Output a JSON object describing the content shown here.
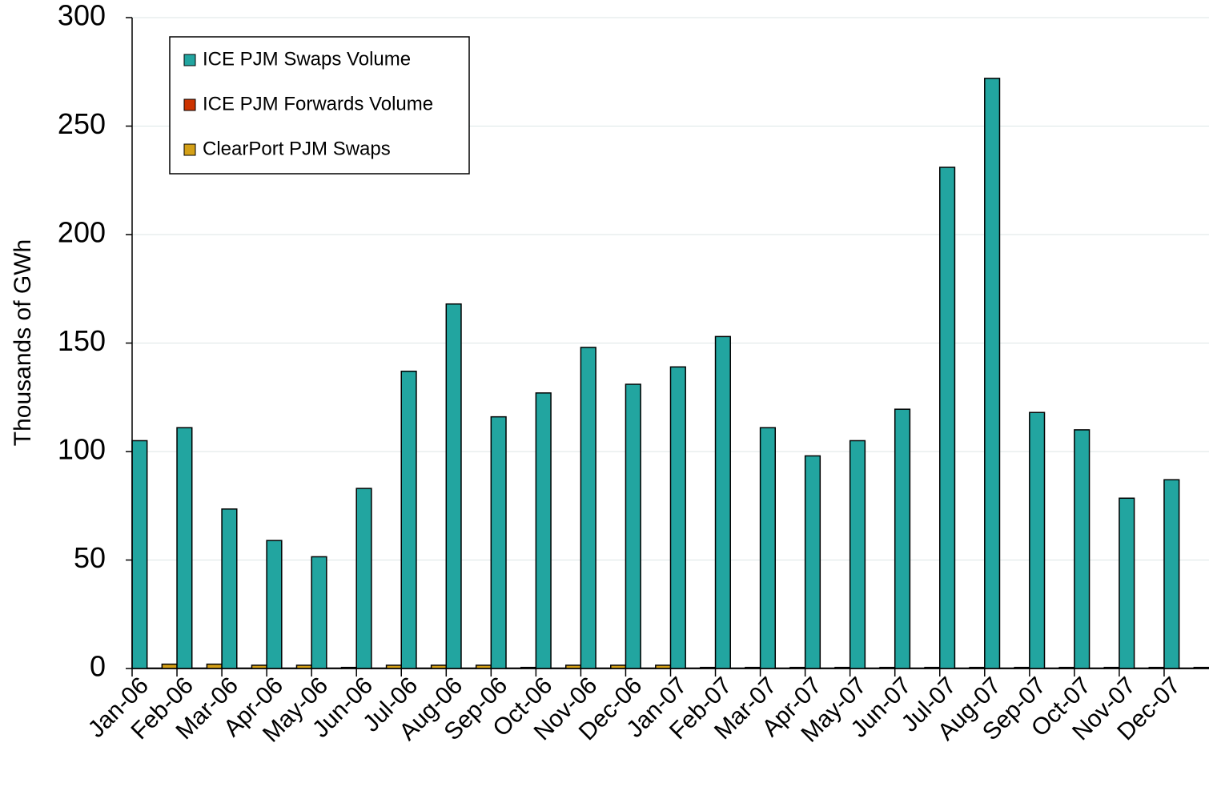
{
  "chart_data": {
    "type": "bar",
    "y_label": "Thousands of GWh",
    "categories": [
      "Jan-06",
      "Feb-06",
      "Mar-06",
      "Apr-06",
      "May-06",
      "Jun-06",
      "Jul-06",
      "Aug-06",
      "Sep-06",
      "Oct-06",
      "Nov-06",
      "Dec-06",
      "Jan-07",
      "Feb-07",
      "Mar-07",
      "Apr-07",
      "May-07",
      "Jun-07",
      "Jul-07",
      "Aug-07",
      "Sep-07",
      "Oct-07",
      "Nov-07",
      "Dec-07"
    ],
    "series": [
      {
        "name": "ICE PJM Swaps Volume",
        "color": "#22a5a0",
        "values": [
          105,
          111,
          73.5,
          59,
          51.5,
          83,
          137,
          168,
          116,
          127,
          148,
          131,
          139,
          153,
          111,
          98,
          105,
          119.5,
          231,
          272,
          118,
          110,
          78.5,
          87
        ]
      },
      {
        "name": "ICE PJM Forwards Volume",
        "color": "#cc3300",
        "values": [
          0.2,
          0.2,
          0.2,
          0.2,
          0.2,
          0.2,
          0.2,
          0.2,
          0.2,
          0.2,
          0.2,
          0.2,
          0.2,
          0.2,
          0.2,
          0.2,
          0.2,
          0.2,
          0.2,
          0.2,
          0.2,
          0.2,
          0.2,
          0.2
        ]
      },
      {
        "name": "ClearPort PJM Swaps",
        "color": "#d4a017",
        "values": [
          2,
          2,
          1.5,
          1.5,
          0.5,
          1.5,
          1.5,
          1.5,
          0.5,
          1.5,
          1.5,
          1.5,
          0.5,
          0.5,
          0.5,
          0.5,
          0.5,
          0.5,
          0.5,
          0.5,
          0.5,
          0.5,
          0.5,
          0.5
        ]
      }
    ],
    "ylim": [
      0,
      300
    ],
    "yticks": [
      0,
      50,
      100,
      150,
      200,
      250,
      300
    ],
    "grid": true,
    "legend": "upper left"
  }
}
